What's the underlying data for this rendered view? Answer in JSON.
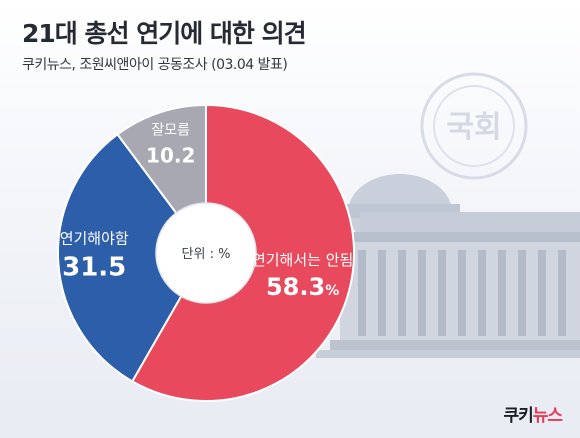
{
  "header": {
    "title": "21대 총선 연기에 대한 의견",
    "subtitle": "쿠키뉴스, 조원씨앤아이 공동조사 (03.04 발표)"
  },
  "background": {
    "emblem_text": "국회"
  },
  "chart_data": {
    "type": "pie",
    "title": "21대 총선 연기에 대한 의견",
    "subtitle": "쿠키뉴스, 조원씨앤아이 공동조사 (03.04 발표)",
    "center_label": "단위 : %",
    "slices": [
      {
        "label": "연기해서는 안됨",
        "value": 58.3,
        "value_text": "58.3",
        "unit": "%",
        "color": "#e8495c"
      },
      {
        "label": "연기해야함",
        "value": 31.5,
        "value_text": "31.5",
        "unit": "",
        "color": "#2d5ea9"
      },
      {
        "label": "잘모름",
        "value": 10.2,
        "value_text": "10.2",
        "unit": "",
        "color": "#a7a8b1"
      }
    ]
  },
  "footer": {
    "brand_part1": "쿠키",
    "brand_part2": "뉴스"
  }
}
